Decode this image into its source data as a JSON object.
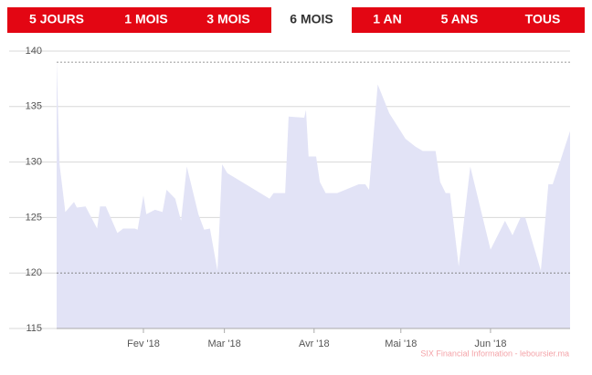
{
  "tabs": [
    "5 JOURS",
    "1 MOIS",
    "3 MOIS",
    "6 MOIS",
    "1 AN",
    "5 ANS",
    "TOUS"
  ],
  "active_tab": 3,
  "credit": "SIX Financial Information - leboursier.ma",
  "chart_data": {
    "type": "area",
    "color": "#e2e3f6",
    "x": [
      2,
      3,
      5,
      8,
      9,
      12,
      16,
      17,
      19,
      23,
      25,
      29,
      30,
      32,
      33,
      36,
      38.6,
      40,
      43,
      45,
      47,
      51,
      53,
      55,
      57.6,
      59.2,
      61,
      75.6,
      77,
      81,
      82.2,
      87.6,
      88.2,
      89.1,
      91.7,
      93,
      95,
      99,
      106.5,
      108.7,
      110,
      113,
      117,
      122.6,
      126,
      128.6,
      131,
      133,
      134.6,
      136.5,
      138,
      141,
      145,
      152,
      157,
      159.6,
      162.4,
      164,
      169.4,
      172,
      173.5,
      179.5
    ],
    "values": [
      139.2,
      129.8,
      125.5,
      126.4,
      125.9,
      126,
      124,
      126,
      126,
      123.6,
      124,
      124,
      123.9,
      127,
      125.3,
      125.7,
      125.5,
      127.5,
      126.7,
      124.7,
      129.6,
      125.3,
      123.9,
      124,
      120.2,
      129.8,
      129,
      126.7,
      127.2,
      127.2,
      134.1,
      134,
      134.7,
      130.5,
      130.5,
      128.2,
      127.2,
      127.2,
      128,
      128,
      127.5,
      137,
      134.4,
      132.1,
      131.4,
      131,
      131,
      131,
      128.2,
      127.2,
      127.2,
      120.6,
      129.6,
      122.1,
      124.7,
      123.4,
      125,
      125,
      120.2,
      128,
      128,
      132.8
    ],
    "xlim": [
      2,
      179.5
    ],
    "xticks": [
      {
        "value": 32,
        "label": "Fev '18"
      },
      {
        "value": 60,
        "label": "Mar '18"
      },
      {
        "value": 91,
        "label": "Avr '18"
      },
      {
        "value": 121,
        "label": "Mai '18"
      },
      {
        "value": 152,
        "label": "Jun '18"
      }
    ],
    "ylim": [
      115,
      140
    ],
    "yticks": [
      115,
      120,
      125,
      130,
      135,
      140
    ],
    "reference_lines": [
      139,
      120
    ],
    "grid": true
  }
}
